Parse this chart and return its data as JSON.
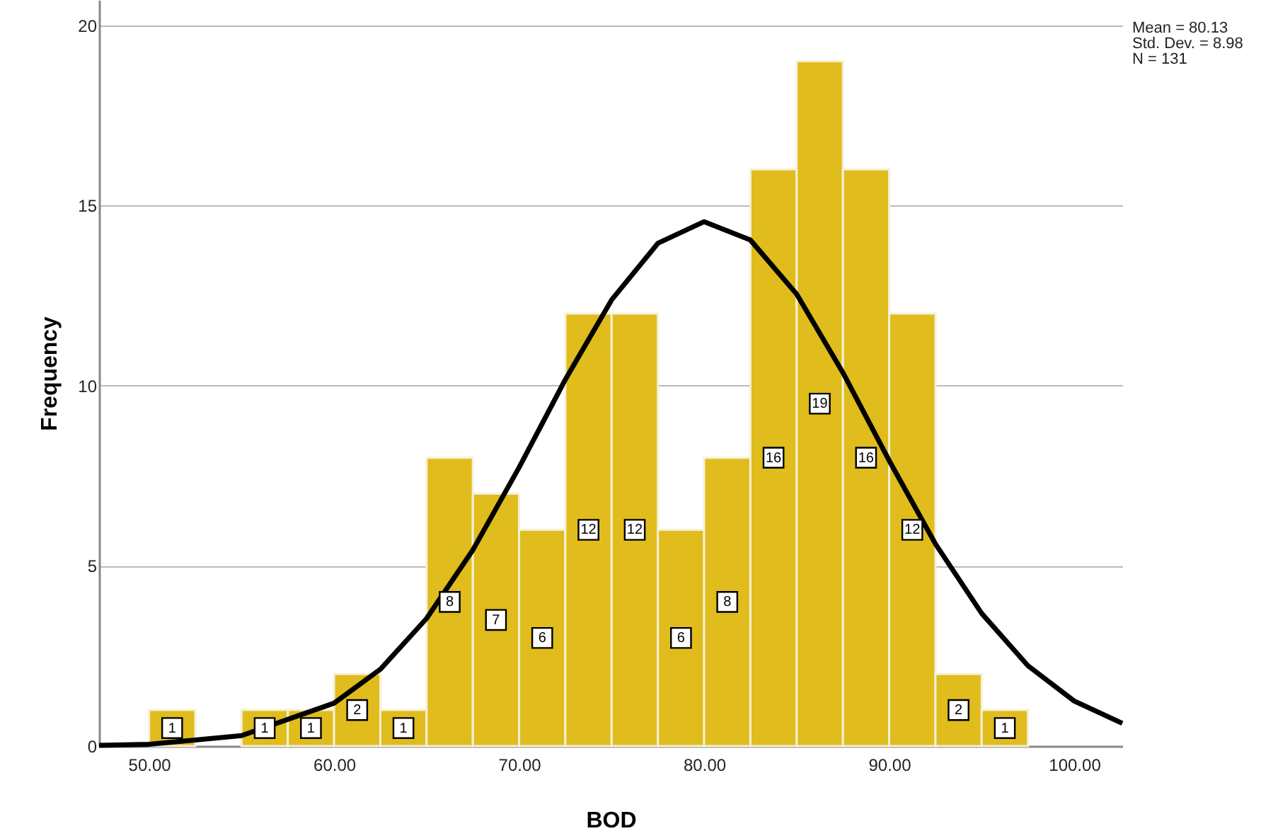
{
  "chart_data": {
    "type": "histogram",
    "xlabel": "BOD",
    "ylabel": "Frequency",
    "bins": [
      50,
      52.5,
      55,
      57.5,
      60,
      62.5,
      65,
      67.5,
      70,
      72.5,
      75,
      77.5,
      80,
      82.5,
      85,
      87.5,
      90,
      92.5,
      95,
      97.5
    ],
    "values": [
      1,
      0,
      1,
      1,
      2,
      1,
      8,
      7,
      6,
      12,
      12,
      6,
      8,
      16,
      19,
      16,
      12,
      2,
      1
    ],
    "value_labels": [
      "1",
      null,
      "1",
      "1",
      "2",
      "1",
      "8",
      "7",
      "6",
      "12",
      "12",
      "6",
      "8",
      "16",
      "19",
      "16",
      "12",
      "2",
      "1"
    ],
    "color": "#e0bc1c",
    "series": [
      {
        "type": "line",
        "line_style": "solid",
        "color": "#000000",
        "x": [
          47.3,
          50,
          55,
          60,
          62.5,
          65,
          67.5,
          70,
          72.5,
          75,
          77.5,
          80,
          82.5,
          85,
          87.5,
          90,
          92.5,
          95,
          97.5,
          100,
          102.6
        ],
        "values": [
          0.02,
          0.05,
          0.29,
          1.19,
          2.13,
          3.54,
          5.44,
          7.73,
          10.17,
          12.38,
          13.95,
          14.55,
          14.04,
          12.54,
          10.36,
          7.92,
          5.61,
          3.68,
          2.23,
          1.25,
          0.63
        ]
      }
    ],
    "xlim": [
      47.3,
      102.6
    ],
    "ylim": [
      0,
      20.7
    ],
    "xticks": [
      {
        "value": 50,
        "label": "50.00"
      },
      {
        "value": 60,
        "label": "60.00"
      },
      {
        "value": 70,
        "label": "70.00"
      },
      {
        "value": 80,
        "label": "80.00"
      },
      {
        "value": 90,
        "label": "90.00"
      },
      {
        "value": 100,
        "label": "100.00"
      }
    ],
    "yticks": [
      0,
      5,
      10,
      15,
      20
    ],
    "grid": "y",
    "annotations": [
      "Mean = 80.13",
      "Std. Dev. = 8.98",
      "N = 131"
    ]
  }
}
